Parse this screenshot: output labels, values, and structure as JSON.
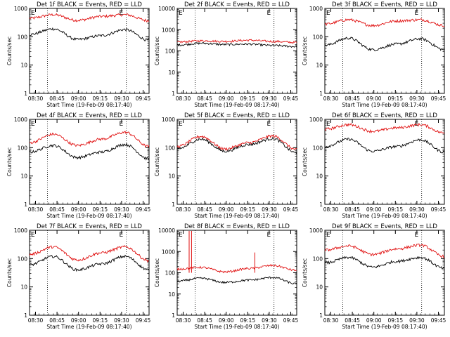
{
  "chart_data": [
    {
      "type": "line",
      "title": "Det 1f BLACK = Events, RED = LLD",
      "xlabel": "Start Time (19-Feb-09 08:17:40)",
      "ylabel": "Counts/sec",
      "ylim": [
        1,
        1000
      ],
      "yscale": "log",
      "x_ticks": [
        "08:30",
        "08:45",
        "09:00",
        "09:15",
        "09:30",
        "09:45"
      ],
      "y_ticks": [
        "1",
        "10",
        "100",
        "1000"
      ],
      "eclipse_marker": "E",
      "x": [
        0,
        0.2,
        0.4,
        0.6,
        0.8,
        1.0
      ],
      "series": [
        {
          "color": "red",
          "values": [
            450,
            600,
            380,
            520,
            600,
            370
          ]
        },
        {
          "color": "black",
          "values": [
            120,
            190,
            80,
            110,
            180,
            75
          ]
        }
      ]
    },
    {
      "type": "line",
      "title": "Det 2f BLACK = Events, RED = LLD",
      "xlabel": "Start Time (19-Feb-09 08:17:40)",
      "ylabel": "Counts/sec",
      "ylim": [
        1,
        10000
      ],
      "yscale": "log",
      "x_ticks": [
        "08:30",
        "08:45",
        "09:00",
        "09:15",
        "09:30",
        "09:45"
      ],
      "y_ticks": [
        "1",
        "10",
        "100",
        "1000",
        "10000"
      ],
      "eclipse_marker": "E",
      "x": [
        0,
        0.2,
        0.4,
        0.6,
        0.8,
        1.0
      ],
      "series": [
        {
          "color": "red",
          "values": [
            260,
            300,
            280,
            320,
            280,
            250
          ]
        },
        {
          "color": "black",
          "values": [
            190,
            230,
            200,
            210,
            180,
            160
          ]
        }
      ]
    },
    {
      "type": "line",
      "title": "Det 3f BLACK = Events, RED = LLD",
      "xlabel": "Start Time (19-Feb-09 08:17:40)",
      "ylabel": "Counts/sec",
      "ylim": [
        1,
        1000
      ],
      "yscale": "log",
      "x_ticks": [
        "08:30",
        "08:45",
        "09:00",
        "09:15",
        "09:30",
        "09:45"
      ],
      "y_ticks": [
        "1",
        "10",
        "100",
        "1000"
      ],
      "eclipse_marker": "E",
      "x": [
        0,
        0.2,
        0.4,
        0.6,
        0.8,
        1.0
      ],
      "series": [
        {
          "color": "red",
          "values": [
            280,
            400,
            250,
            360,
            400,
            250
          ]
        },
        {
          "color": "black",
          "values": [
            50,
            90,
            35,
            55,
            85,
            35
          ]
        }
      ]
    },
    {
      "type": "line",
      "title": "Det 4f BLACK = Events, RED = LLD",
      "xlabel": "Start Time (19-Feb-09 08:17:40)",
      "ylabel": "Counts/sec",
      "ylim": [
        1,
        1000
      ],
      "yscale": "log",
      "x_ticks": [
        "08:30",
        "08:45",
        "09:00",
        "09:15",
        "09:30",
        "09:45"
      ],
      "y_ticks": [
        "1",
        "10",
        "100",
        "1000"
      ],
      "eclipse_marker": "E",
      "x": [
        0,
        0.2,
        0.4,
        0.6,
        0.8,
        1.0
      ],
      "series": [
        {
          "color": "red",
          "values": [
            150,
            300,
            120,
            200,
            350,
            110
          ]
        },
        {
          "color": "black",
          "values": [
            70,
            120,
            45,
            70,
            130,
            40
          ]
        }
      ]
    },
    {
      "type": "line",
      "title": "Det 5f BLACK = Events, RED = LLD",
      "xlabel": "Start Time (19-Feb-09 08:17:40)",
      "ylabel": "Counts/sec",
      "ylim": [
        1,
        1000
      ],
      "yscale": "log",
      "x_ticks": [
        "08:30",
        "08:45",
        "09:00",
        "09:15",
        "09:30",
        "09:45"
      ],
      "y_ticks": [
        "1",
        "10",
        "100",
        "1000"
      ],
      "eclipse_marker": "E",
      "x": [
        0,
        0.2,
        0.4,
        0.6,
        0.8,
        1.0
      ],
      "series": [
        {
          "color": "red",
          "values": [
            110,
            250,
            90,
            150,
            260,
            85
          ]
        },
        {
          "color": "black",
          "values": [
            90,
            200,
            75,
            130,
            210,
            65
          ]
        }
      ]
    },
    {
      "type": "line",
      "title": "Det 6f BLACK = Events, RED = LLD",
      "xlabel": "Start Time (19-Feb-09 08:17:40)",
      "ylabel": "Counts/sec",
      "ylim": [
        1,
        1000
      ],
      "yscale": "log",
      "x_ticks": [
        "08:30",
        "08:45",
        "09:00",
        "09:15",
        "09:30",
        "09:45"
      ],
      "y_ticks": [
        "1",
        "10",
        "100",
        "1000"
      ],
      "eclipse_marker": "E",
      "x": [
        0,
        0.2,
        0.4,
        0.6,
        0.8,
        1.0
      ],
      "series": [
        {
          "color": "red",
          "values": [
            450,
            650,
            380,
            500,
            650,
            330
          ]
        },
        {
          "color": "black",
          "values": [
            110,
            200,
            75,
            110,
            190,
            70
          ]
        }
      ]
    },
    {
      "type": "line",
      "title": "Det 7f BLACK = Events, RED = LLD",
      "xlabel": "Start Time (19-Feb-09 08:17:40)",
      "ylabel": "Counts/sec",
      "ylim": [
        1,
        1000
      ],
      "yscale": "log",
      "x_ticks": [
        "08:30",
        "08:45",
        "09:00",
        "09:15",
        "09:30",
        "09:45"
      ],
      "y_ticks": [
        "1",
        "10",
        "100",
        "1000"
      ],
      "eclipse_marker": "E",
      "x": [
        0,
        0.2,
        0.4,
        0.6,
        0.8,
        1.0
      ],
      "series": [
        {
          "color": "red",
          "values": [
            140,
            260,
            90,
            160,
            260,
            85
          ]
        },
        {
          "color": "black",
          "values": [
            60,
            120,
            40,
            65,
            120,
            40
          ]
        }
      ]
    },
    {
      "type": "line",
      "title": "Det 8f BLACK = Events, RED = LLD",
      "xlabel": "Start Time (19-Feb-09 08:17:40)",
      "ylabel": "Counts/sec",
      "ylim": [
        1,
        10000
      ],
      "yscale": "log",
      "x_ticks": [
        "08:30",
        "08:45",
        "09:00",
        "09:15",
        "09:30",
        "09:45"
      ],
      "y_ticks": [
        "1",
        "10",
        "100",
        "1000",
        "10000"
      ],
      "eclipse_marker": "E",
      "x": [
        0,
        0.2,
        0.4,
        0.6,
        0.8,
        1.0
      ],
      "series": [
        {
          "color": "red",
          "values": [
            150,
            180,
            110,
            160,
            220,
            130
          ]
        },
        {
          "color": "black",
          "values": [
            40,
            55,
            35,
            45,
            60,
            30
          ]
        }
      ]
    },
    {
      "type": "line",
      "title": "Det 9f BLACK = Events, RED = LLD",
      "xlabel": "Start Time (19-Feb-09 08:17:40)",
      "ylabel": "Counts/sec",
      "ylim": [
        1,
        1000
      ],
      "yscale": "log",
      "x_ticks": [
        "08:30",
        "08:45",
        "09:00",
        "09:15",
        "09:30",
        "09:45"
      ],
      "y_ticks": [
        "1",
        "10",
        "100",
        "1000"
      ],
      "eclipse_marker": "E",
      "x": [
        0,
        0.2,
        0.4,
        0.6,
        0.8,
        1.0
      ],
      "series": [
        {
          "color": "red",
          "values": [
            200,
            280,
            140,
            220,
            300,
            120
          ]
        },
        {
          "color": "black",
          "values": [
            70,
            110,
            50,
            80,
            110,
            45
          ]
        }
      ]
    }
  ]
}
